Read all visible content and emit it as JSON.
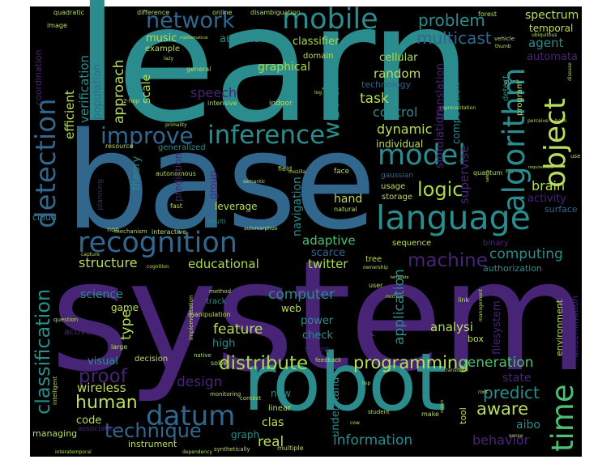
{
  "colors": {
    "background": "#000000",
    "teal": "#2a8c8c",
    "deep_teal": "#1f6f86",
    "blue": "#31678d",
    "purple": "#482476",
    "indigo": "#3e4a89",
    "green": "#4dbf72",
    "lime": "#a9db48",
    "pale_green": "#b8de5b"
  },
  "words": {
    "learn": "learn",
    "base": "base",
    "system": "system",
    "robot": "robot",
    "language": "language",
    "recognition": "recognition",
    "inference": "inference",
    "improve": "improve",
    "network": "network",
    "mobile": "mobile",
    "model": "model",
    "object": "object",
    "algorithm": "algorithm",
    "detection": "detection",
    "datum": "datum",
    "time": "time",
    "classification": "classification",
    "problem": "problem",
    "multicast": "multicast",
    "word": "word",
    "machine": "machine",
    "distribute": "distribute",
    "programming": "programming",
    "human": "human",
    "proof": "proof",
    "technique": "technique",
    "logic": "logic",
    "design": "design",
    "feature": "feature",
    "computer": "computer",
    "structure": "structure",
    "educational": "educational",
    "twitter": "twitter",
    "control": "control",
    "task": "task",
    "random": "random",
    "speech": "speech",
    "approach": "approach",
    "efficient": "efficient",
    "verification": "verification",
    "scale": "scale",
    "music": "music",
    "automatic": "automatic",
    "classifier": "classifier",
    "graphical": "graphical",
    "cellular": "cellular",
    "agent": "agent",
    "automata": "automata",
    "spectrum": "spectrum",
    "temporal": "temporal",
    "dynamic": "dynamic",
    "supervise": "supervise",
    "simulation": "simulation",
    "translation": "translation",
    "computation": "computation",
    "brain": "brain",
    "activity": "activity",
    "surface": "surface",
    "authentication": "authentication",
    "hand": "hand",
    "adaptive": "adaptive",
    "scarce": "scarce",
    "computing": "computing",
    "authorization": "authorization",
    "binary": "binary",
    "sequence": "sequence",
    "tree": "tree",
    "application": "application",
    "analysi": "analysi",
    "filesystem": "filesystem",
    "environment": "environment",
    "dissemination": "dissemination",
    "generation": "generation",
    "state": "state",
    "predict": "predict",
    "aware": "aware",
    "aibo": "aibo",
    "behavior": "behavior",
    "information": "information",
    "real": "real",
    "clas": "clas",
    "new": "new",
    "understand": "understand",
    "graphic": "graphic",
    "power": "power",
    "share": "share",
    "check": "check",
    "web": "web",
    "high": "high",
    "type": "type",
    "visual": "visual",
    "wireless": "wireless",
    "code": "code",
    "science": "science",
    "game": "game",
    "active": "active",
    "leverage": "leverage",
    "group": "group",
    "navigation": "navigation",
    "prediction": "prediction",
    "theory": "theory",
    "cloud": "cloud",
    "population": "population",
    "coordination": "coordination",
    "image": "image",
    "quadratic": "quadratic",
    "difference": "difference",
    "online": "online",
    "disambiguation": "disambiguation",
    "example": "example",
    "domain": "domain",
    "technology": "technology",
    "detect": "detect",
    "program": "program",
    "individual": "individual",
    "gaussian": "gaussian",
    "usage": "usage",
    "storage": "storage",
    "natural": "natural",
    "face": "face",
    "field": "field",
    "quantum": "quantum",
    "planning": "planning",
    "autonomous": "autonomous",
    "generalized": "generalized",
    "resource": "resource",
    "intensive": "intensive",
    "indoor": "indoor",
    "general": "general",
    "fast": "fast",
    "multi": "multi",
    "interactive": "interactive",
    "mechanism": "mechanism",
    "non": "non",
    "managing": "managing",
    "association": "association",
    "instrument": "instrument",
    "graph": "graph",
    "linear": "linear",
    "context": "context",
    "tool": "tool",
    "box": "box",
    "link": "link",
    "management": "management",
    "student": "student",
    "make": "make",
    "multiple": "multiple",
    "monitoring": "monitoring",
    "solve": "solve",
    "manipulation": "manipulation",
    "implementation": "implementation",
    "method": "method",
    "track": "track",
    "decision": "decision",
    "large": "large",
    "intelligent": "intelligent",
    "question": "question",
    "user": "user",
    "feedback": "feedback",
    "native": "native",
    "dependency": "dependency",
    "synthetically": "synthetically",
    "interatemporal": "interatemporal",
    "primality": "primality",
    "lazy": "lazy",
    "mathematical": "mathematical",
    "forest": "forest",
    "vehicle": "vehicle",
    "thumb": "thumb",
    "ubiquitous": "ubiquitous",
    "giant": "giant",
    "perceive": "perceive",
    "hash": "hash",
    "use": "use",
    "requirement": "requirement",
    "capture": "capture",
    "nuclear": "nuclear",
    "ownership": "ownership",
    "template": "template",
    "sense": "sense",
    "mozilla": "mozilla",
    "semantic": "semantic",
    "automorphize": "automorphize",
    "cognition": "cognition",
    "transduce": "transduce",
    "cow": "cow",
    "fair": "fair",
    "representation": "representation",
    "log": "log",
    "lisp": "lisp",
    "hop": "2-hop",
    "safety": "safety",
    "root": "root",
    "sketch": "sketch",
    "disease": "disease"
  }
}
